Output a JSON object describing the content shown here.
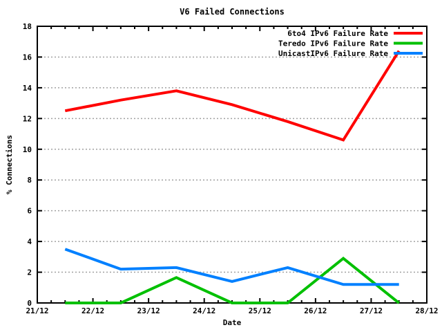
{
  "title": "V6 Failed Connections",
  "axes": {
    "xlabel": "Date",
    "ylabel": "% Connections",
    "x_tick_labels": [
      "21/12",
      "22/12",
      "23/12",
      "24/12",
      "25/12",
      "26/12",
      "27/12",
      "28/12"
    ],
    "y_tick_labels": [
      "0",
      "2",
      "4",
      "6",
      "8",
      "10",
      "12",
      "14",
      "16",
      "18"
    ]
  },
  "legend": {
    "entries": [
      "6to4 IPv6 Failure Rate",
      "Teredo IPv6 Failure Rate",
      "UnicastIPv6 Failure Rate"
    ],
    "position": "top-right-inside"
  },
  "colors": {
    "series_red": "#ff0000",
    "series_green": "#00c000",
    "series_blue": "#0080ff",
    "grid": "#a0a0a0",
    "axis": "#000000",
    "background": "#ffffff"
  },
  "chart_data": {
    "type": "line",
    "title": "V6 Failed Connections",
    "xlabel": "Date",
    "ylabel": "% Connections",
    "x_unit": "day of December",
    "xlim": [
      21,
      28
    ],
    "ylim": [
      0,
      18
    ],
    "x_major_ticks": [
      21,
      22,
      23,
      24,
      25,
      26,
      27,
      28
    ],
    "x_tick_labels": [
      "21/12",
      "22/12",
      "23/12",
      "24/12",
      "25/12",
      "26/12",
      "27/12",
      "28/12"
    ],
    "y_major_ticks": [
      0,
      2,
      4,
      6,
      8,
      10,
      12,
      14,
      16,
      18
    ],
    "grid": "horizontal dotted gridlines at each y major tick",
    "legend_position": "top-right inside plot",
    "x": [
      21.5,
      22.5,
      23.5,
      24.5,
      25.5,
      26.5,
      27.5
    ],
    "series": [
      {
        "name": "6to4 IPv6 Failure Rate",
        "color": "#ff0000",
        "values": [
          12.5,
          13.2,
          13.8,
          12.9,
          11.8,
          10.6,
          16.4
        ]
      },
      {
        "name": "Teredo IPv6 Failure Rate",
        "color": "#00c000",
        "values": [
          0,
          0,
          1.65,
          0,
          0,
          2.9,
          0
        ]
      },
      {
        "name": "UnicastIPv6 Failure Rate",
        "color": "#0080ff",
        "values": [
          3.5,
          2.2,
          2.3,
          1.4,
          2.3,
          1.2,
          1.2
        ]
      }
    ]
  }
}
